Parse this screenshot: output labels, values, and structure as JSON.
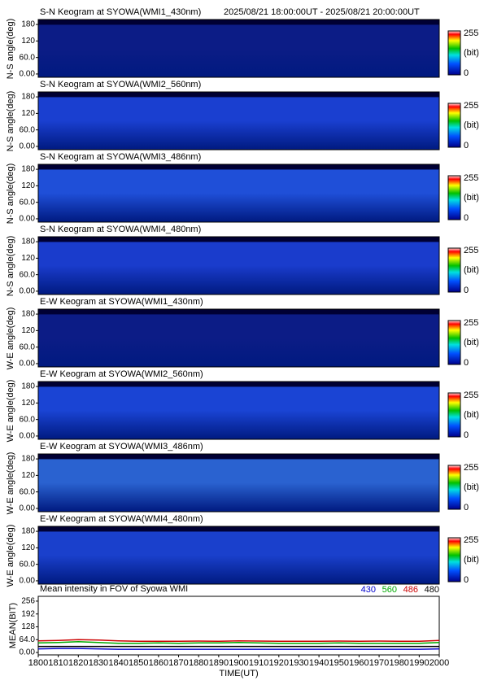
{
  "chart_data": [
    {
      "type": "image",
      "title": "S-N Keogram at SYOWA(WMI1_430nm)",
      "subtitle": "2025/08/21 18:00:00UT - 2025/08/21 20:00:00UT",
      "ylabel": "N-S angle(deg)",
      "ylim": [
        -12,
        198
      ],
      "yticks": [
        {
          "value": 0,
          "label": "0.00"
        },
        {
          "value": 60,
          "label": "60.0"
        },
        120,
        180
      ],
      "color": "#0c1c86",
      "cticks": [
        255,
        0
      ],
      "clabel": "(bit)"
    },
    {
      "type": "image",
      "title": "S-N Keogram at SYOWA(WMI2_560nm)",
      "ylabel": "N-S angle(deg)",
      "ylim": [
        -12,
        198
      ],
      "yticks": [
        {
          "value": 0,
          "label": "0.00"
        },
        {
          "value": 60,
          "label": "60.0"
        },
        120,
        180
      ],
      "color": "#1a3fd0",
      "cticks": [
        255,
        0
      ],
      "clabel": "(bit)"
    },
    {
      "type": "image",
      "title": "S-N Keogram at SYOWA(WMI3_486nm)",
      "ylabel": "N-S angle(deg)",
      "ylim": [
        -12,
        198
      ],
      "yticks": [
        {
          "value": 0,
          "label": "0.00"
        },
        {
          "value": 60,
          "label": "60.0"
        },
        120,
        180
      ],
      "color": "#1f4fd8",
      "cticks": [
        255,
        0
      ],
      "clabel": "(bit)"
    },
    {
      "type": "image",
      "title": "S-N Keogram at SYOWA(WMI4_480nm)",
      "ylabel": "N-S angle(deg)",
      "ylim": [
        -12,
        198
      ],
      "yticks": [
        {
          "value": 0,
          "label": "0.00"
        },
        {
          "value": 60,
          "label": "60.0"
        },
        120,
        180
      ],
      "color": "#1a3ccc",
      "cticks": [
        255,
        0
      ],
      "clabel": "(bit)"
    },
    {
      "type": "image",
      "title": "E-W Keogram at SYOWA(WMI1_430nm)",
      "ylabel": "W-E angle(deg)",
      "ylim": [
        -12,
        198
      ],
      "yticks": [
        {
          "value": 0,
          "label": "0.00"
        },
        {
          "value": 60,
          "label": "60.0"
        },
        120,
        180
      ],
      "color": "#0c1c86",
      "cticks": [
        255,
        0
      ],
      "clabel": "(bit)"
    },
    {
      "type": "image",
      "title": "E-W Keogram at SYOWA(WMI2_560nm)",
      "ylabel": "W-E angle(deg)",
      "ylim": [
        -12,
        198
      ],
      "yticks": [
        {
          "value": 0,
          "label": "0.00"
        },
        {
          "value": 60,
          "label": "60.0"
        },
        120,
        180
      ],
      "color": "#1a44d4",
      "cticks": [
        255,
        0
      ],
      "clabel": "(bit)"
    },
    {
      "type": "image",
      "title": "E-W Keogram at SYOWA(WMI3_486nm)",
      "ylabel": "W-E angle(deg)",
      "ylim": [
        -12,
        198
      ],
      "yticks": [
        {
          "value": 0,
          "label": "0.00"
        },
        {
          "value": 60,
          "label": "60.0"
        },
        120,
        180
      ],
      "color": "#2a62d0",
      "cticks": [
        255,
        0
      ],
      "clabel": "(bit)"
    },
    {
      "type": "image",
      "title": "E-W Keogram at SYOWA(WMI4_480nm)",
      "ylabel": "W-E angle(deg)",
      "ylim": [
        -12,
        198
      ],
      "yticks": [
        {
          "value": 0,
          "label": "0.00"
        },
        {
          "value": 60,
          "label": "60.0"
        },
        120,
        180
      ],
      "color": "#1a40cc",
      "cticks": [
        255,
        0
      ],
      "clabel": "(bit)"
    },
    {
      "type": "line",
      "title": "Mean intensity in FOV of Syowa WMI",
      "ylabel": "MEAN(BIT)",
      "xlabel": "TIME(UT)",
      "x": [
        1800,
        1810,
        1820,
        1830,
        1840,
        1850,
        1860,
        1870,
        1880,
        1890,
        1900,
        1910,
        1920,
        1930,
        1940,
        1950,
        1960,
        1970,
        1980,
        1990,
        2000
      ],
      "xlim": [
        1800,
        2000
      ],
      "xticks": [
        1800,
        1810,
        1820,
        1830,
        1840,
        1850,
        1860,
        1870,
        1880,
        1890,
        1900,
        1910,
        1920,
        1930,
        1940,
        1950,
        1960,
        1970,
        1980,
        1990,
        2000
      ],
      "ylim": [
        -12,
        280
      ],
      "yticks": [
        {
          "value": 0,
          "label": "0.00"
        },
        {
          "value": 64,
          "label": "64.0"
        },
        128,
        192,
        256
      ],
      "series": [
        {
          "name": "430",
          "color": "#0000cc",
          "values": [
            18,
            20,
            20,
            18,
            16,
            16,
            16,
            16,
            16,
            16,
            16,
            16,
            16,
            16,
            16,
            16,
            16,
            16,
            16,
            16,
            18
          ]
        },
        {
          "name": "560",
          "color": "#00aa00",
          "values": [
            48,
            50,
            54,
            50,
            46,
            46,
            48,
            46,
            48,
            48,
            50,
            48,
            46,
            46,
            46,
            48,
            46,
            46,
            46,
            46,
            50
          ]
        },
        {
          "name": "486",
          "color": "#cc0000",
          "values": [
            58,
            60,
            64,
            62,
            58,
            56,
            56,
            56,
            57,
            56,
            58,
            57,
            56,
            56,
            56,
            57,
            56,
            57,
            56,
            56,
            60
          ]
        },
        {
          "name": "480",
          "color": "#000000",
          "values": [
            30,
            30,
            30,
            30,
            30,
            30,
            30,
            30,
            30,
            30,
            30,
            30,
            30,
            30,
            30,
            30,
            30,
            30,
            30,
            30,
            30
          ]
        }
      ]
    }
  ]
}
